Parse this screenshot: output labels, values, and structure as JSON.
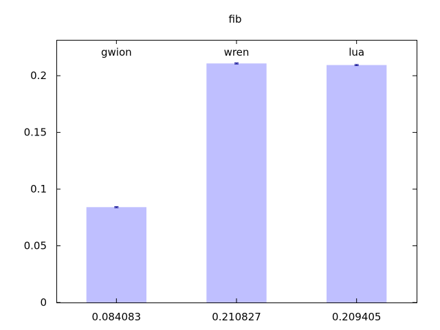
{
  "chart_data": {
    "type": "bar",
    "title": "fib",
    "xlabel": "",
    "ylabel": "",
    "categories": [
      "gwion",
      "wren",
      "lua"
    ],
    "values": [
      0.084083,
      0.210827,
      0.209405
    ],
    "x_tick_labels": [
      "0.084083",
      "0.210827",
      "0.209405"
    ],
    "error_bars": [
      {
        "low": 0.0836,
        "high": 0.0845
      },
      {
        "low": 0.2103,
        "high": 0.2113
      },
      {
        "low": 0.2089,
        "high": 0.2099
      }
    ],
    "ylim": [
      0,
      0.2316
    ],
    "y_ticks": [
      0,
      0.05,
      0.1,
      0.15,
      0.2
    ],
    "y_tick_labels": [
      "0",
      "0.05",
      "0.1",
      "0.15",
      "0.2"
    ],
    "grid": false,
    "legend": "none",
    "colors": {
      "bar_fill": "#bfbfff",
      "error_bar": "#00008b",
      "axis": "#000000"
    }
  }
}
